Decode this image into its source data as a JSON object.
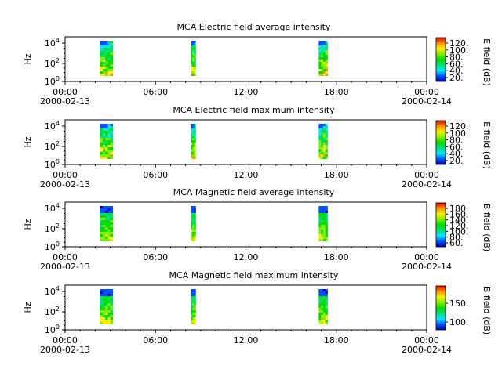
{
  "chart_data": [
    {
      "type": "heatmap",
      "title": "MCA  Electric field average intensity",
      "ylabel": "Hz",
      "y_scale": "log",
      "y_ticks": [
        {
          "base": "10",
          "exp": "0"
        },
        {
          "base": "10",
          "exp": "2"
        },
        {
          "base": "10",
          "exp": "4"
        }
      ],
      "x_ticks": [
        {
          "label": "00:00",
          "date": "2000-02-13"
        },
        {
          "label": "06:00",
          "date": ""
        },
        {
          "label": "12:00",
          "date": ""
        },
        {
          "label": "18:00",
          "date": ""
        },
        {
          "label": "00:00",
          "date": "2000-02-14"
        }
      ],
      "colorbar": {
        "label": "E field (dB)",
        "ticks": [
          "20.",
          "40.",
          "60.",
          "80.",
          "100.",
          "120."
        ]
      },
      "passes": [
        {
          "start": "2000-02-13T02:20",
          "end": "2000-02-13T03:10"
        },
        {
          "start": "2000-02-13T08:20",
          "end": "2000-02-13T08:40"
        },
        {
          "start": "2000-02-13T16:50",
          "end": "2000-02-13T17:25"
        }
      ],
      "colormap": "e"
    },
    {
      "type": "heatmap",
      "title": "MCA  Electric field maximum intensity",
      "ylabel": "Hz",
      "y_scale": "log",
      "y_ticks": [
        {
          "base": "10",
          "exp": "0"
        },
        {
          "base": "10",
          "exp": "2"
        },
        {
          "base": "10",
          "exp": "4"
        }
      ],
      "x_ticks": [
        {
          "label": "00:00",
          "date": "2000-02-13"
        },
        {
          "label": "06:00",
          "date": ""
        },
        {
          "label": "12:00",
          "date": ""
        },
        {
          "label": "18:00",
          "date": ""
        },
        {
          "label": "00:00",
          "date": "2000-02-14"
        }
      ],
      "colorbar": {
        "label": "E field (dB)",
        "ticks": [
          "20.",
          "40.",
          "60.",
          "80.",
          "100.",
          "120."
        ]
      },
      "passes": [
        {
          "start": "2000-02-13T02:20",
          "end": "2000-02-13T03:10"
        },
        {
          "start": "2000-02-13T08:20",
          "end": "2000-02-13T08:40"
        },
        {
          "start": "2000-02-13T16:50",
          "end": "2000-02-13T17:25"
        }
      ],
      "colormap": "e"
    },
    {
      "type": "heatmap",
      "title": "MCA  Magnetic field average intensity",
      "ylabel": "Hz",
      "y_scale": "log",
      "y_ticks": [
        {
          "base": "10",
          "exp": "0"
        },
        {
          "base": "10",
          "exp": "2"
        },
        {
          "base": "10",
          "exp": "4"
        }
      ],
      "x_ticks": [
        {
          "label": "00:00",
          "date": "2000-02-13"
        },
        {
          "label": "06:00",
          "date": ""
        },
        {
          "label": "12:00",
          "date": ""
        },
        {
          "label": "18:00",
          "date": ""
        },
        {
          "label": "00:00",
          "date": "2000-02-14"
        }
      ],
      "colorbar": {
        "label": "B field (dB)",
        "ticks": [
          "60.",
          "80.",
          "100.",
          "120.",
          "140.",
          "160.",
          "180."
        ]
      },
      "passes": [
        {
          "start": "2000-02-13T02:20",
          "end": "2000-02-13T03:10"
        },
        {
          "start": "2000-02-13T08:20",
          "end": "2000-02-13T08:40"
        },
        {
          "start": "2000-02-13T16:50",
          "end": "2000-02-13T17:25"
        }
      ],
      "colormap": "b"
    },
    {
      "type": "heatmap",
      "title": "MCA  Magnetic field maximum intensity",
      "ylabel": "Hz",
      "y_scale": "log",
      "y_ticks": [
        {
          "base": "10",
          "exp": "0"
        },
        {
          "base": "10",
          "exp": "2"
        },
        {
          "base": "10",
          "exp": "4"
        }
      ],
      "x_ticks": [
        {
          "label": "00:00",
          "date": "2000-02-13"
        },
        {
          "label": "06:00",
          "date": ""
        },
        {
          "label": "12:00",
          "date": ""
        },
        {
          "label": "18:00",
          "date": ""
        },
        {
          "label": "00:00",
          "date": "2000-02-14"
        }
      ],
      "colorbar": {
        "label": "B field (dB)",
        "ticks": [
          "100.",
          "150."
        ]
      },
      "passes": [
        {
          "start": "2000-02-13T02:20",
          "end": "2000-02-13T03:10"
        },
        {
          "start": "2000-02-13T08:20",
          "end": "2000-02-13T08:40"
        },
        {
          "start": "2000-02-13T16:50",
          "end": "2000-02-13T17:25"
        }
      ],
      "colormap": "b"
    }
  ]
}
